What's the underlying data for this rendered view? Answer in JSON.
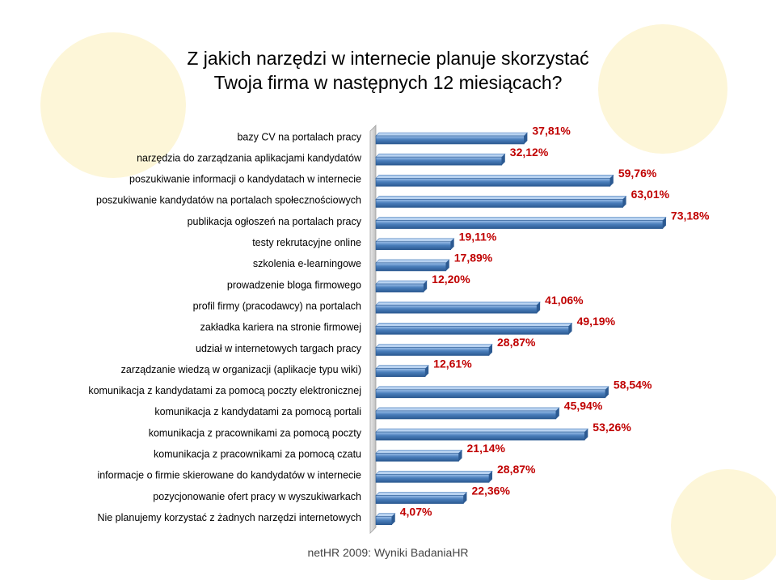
{
  "chart_data": {
    "type": "bar",
    "orientation": "horizontal",
    "title": "Z jakich narzędzi w internecie planuje skorzystać Twoja firma w następnych 12 miesiącach?",
    "source": "netHR 2009: Wyniki BadaniaHR",
    "color": "#4a7ebb",
    "categories": [
      "bazy CV na portalach pracy",
      "narzędzia do zarządzania aplikacjami kandydatów",
      "poszukiwanie informacji o kandydatach w internecie",
      "poszukiwanie kandydatów na portalach społecznościowych",
      "publikacja ogłoszeń na portalach pracy",
      "testy rekrutacyjne online",
      "szkolenia e-learningowe",
      "prowadzenie bloga firmowego",
      "profil firmy (pracodawcy) na portalach",
      "zakładka kariera na stronie firmowej",
      "udział w internetowych targach pracy",
      "zarządzanie wiedzą w organizacji (aplikacje typu wiki)",
      "komunikacja z kandydatami za pomocą poczty elektronicznej",
      "komunikacja z kandydatami za pomocą portali",
      "komunikacja z pracownikami za pomocą poczty",
      "komunikacja z pracownikami za pomocą czatu",
      "informacje o firmie skierowane do kandydatów w internecie",
      "pozycjonowanie ofert pracy w wyszukiwarkach",
      "Nie planujemy korzystać z żadnych narzędzi internetowych"
    ],
    "values": [
      37.81,
      32.12,
      59.76,
      63.01,
      73.18,
      19.11,
      17.89,
      12.2,
      41.06,
      49.19,
      28.87,
      12.61,
      58.54,
      45.94,
      53.26,
      21.14,
      28.87,
      22.36,
      4.07
    ],
    "value_labels": [
      "37,81%",
      "32,12%",
      "59,76%",
      "63,01%",
      "73,18%",
      "19,11%",
      "17,89%",
      "12,20%",
      "41,06%",
      "49,19%",
      "28,87%",
      "12,61%",
      "58,54%",
      "45,94%",
      "53,26%",
      "21,14%",
      "28,87%",
      "22,36%",
      "4,07%"
    ]
  }
}
